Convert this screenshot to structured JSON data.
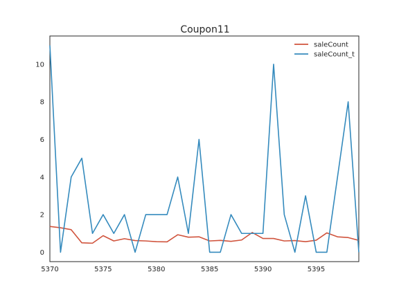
{
  "chart_data": {
    "type": "line",
    "title": "Coupon11",
    "xlabel": "",
    "ylabel": "",
    "xlim": [
      5370,
      5399
    ],
    "ylim": [
      -0.5,
      11.5
    ],
    "xticks": [
      5370,
      5375,
      5380,
      5385,
      5390,
      5395
    ],
    "yticks": [
      0,
      2,
      4,
      6,
      8,
      10
    ],
    "grid": false,
    "legend_position": "top-right",
    "x": [
      5370,
      5371,
      5372,
      5373,
      5374,
      5375,
      5376,
      5377,
      5378,
      5379,
      5380,
      5381,
      5382,
      5383,
      5384,
      5385,
      5386,
      5387,
      5388,
      5389,
      5390,
      5391,
      5392,
      5393,
      5394,
      5395,
      5396,
      5397,
      5398,
      5399
    ],
    "series": [
      {
        "name": "saleCount",
        "color": "#d0533c",
        "values": [
          1.37,
          1.3,
          1.2,
          0.5,
          0.48,
          0.88,
          0.6,
          0.72,
          0.62,
          0.6,
          0.56,
          0.55,
          0.93,
          0.8,
          0.82,
          0.6,
          0.63,
          0.58,
          0.65,
          1.05,
          0.73,
          0.73,
          0.6,
          0.62,
          0.56,
          0.64,
          1.03,
          0.82,
          0.78,
          0.63
        ]
      },
      {
        "name": "saleCount_t",
        "color": "#348abd",
        "values": [
          11,
          0,
          4,
          5,
          1,
          2,
          1,
          2,
          0,
          2,
          2,
          2,
          4,
          1,
          6,
          0,
          0,
          2,
          1,
          1,
          1,
          10,
          2,
          0,
          3,
          0,
          0,
          4,
          8,
          0
        ]
      }
    ]
  }
}
